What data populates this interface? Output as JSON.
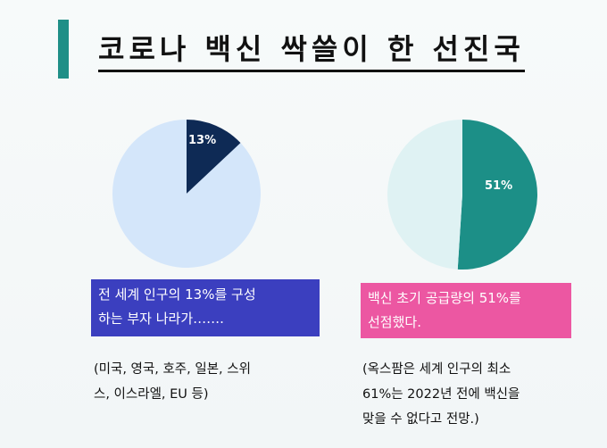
{
  "title": "코로나 백신 싹쓸이 한 선진국",
  "chart_data": [
    {
      "type": "pie",
      "slices": [
        {
          "label": "13%",
          "value": 13,
          "color": "#0e2a55"
        },
        {
          "label": "",
          "value": 87,
          "color": "#d4e6fa"
        }
      ]
    },
    {
      "type": "pie",
      "slices": [
        {
          "label": "51%",
          "value": 51,
          "color": "#1c8f87"
        },
        {
          "label": "",
          "value": 49,
          "color": "#dff2f3"
        }
      ]
    }
  ],
  "left": {
    "box_line1": "전 세계 인구의 13%를 구성",
    "box_line2": "하는 부자 나라가…….",
    "note_line1": "(미국, 영국, 호주, 일본, 스위",
    "note_line2": "스, 이스라엘, EU 등)"
  },
  "right": {
    "box_line1": "백신 초기 공급량의 51%를",
    "box_line2": "선점했다.",
    "note_line1": "(옥스팜은 세계 인구의 최소",
    "note_line2": "61%는 2022년 전에 백신을",
    "note_line3": "맞을 수 없다고 전망.)"
  },
  "colors": {
    "accent": "#1f8f87",
    "left_box": "#3b3fbf",
    "right_box": "#ec57a2"
  }
}
